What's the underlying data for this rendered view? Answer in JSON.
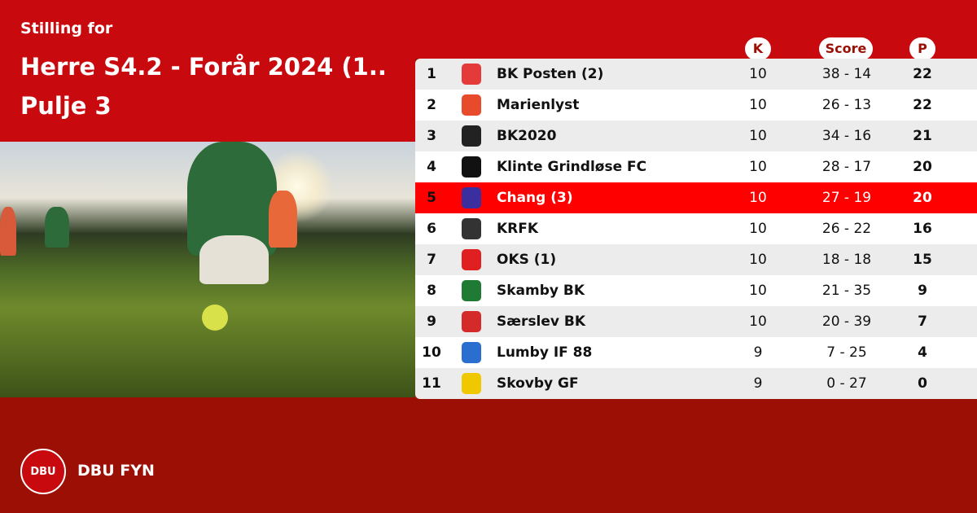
{
  "header": {
    "subtitle": "Stilling for",
    "title": "Herre S4.2 - Forår 2024 (1..",
    "title2": "Pulje 3"
  },
  "columns": {
    "k": "K",
    "score": "Score",
    "p": "P"
  },
  "colors": {
    "header_red": "#c80a0f",
    "footer_red": "#9c0f05",
    "highlight": "#ff0000"
  },
  "rows": [
    {
      "rank": "1",
      "team": "BK Posten (2)",
      "k": "10",
      "score": "38 - 14",
      "p": "22",
      "logo_color": "#e53a3a"
    },
    {
      "rank": "2",
      "team": "Marienlyst",
      "k": "10",
      "score": "26 - 13",
      "p": "22",
      "logo_color": "#e84a2c"
    },
    {
      "rank": "3",
      "team": "BK2020",
      "k": "10",
      "score": "34 - 16",
      "p": "21",
      "logo_color": "#222222"
    },
    {
      "rank": "4",
      "team": "Klinte Grindløse FC",
      "k": "10",
      "score": "28 - 17",
      "p": "20",
      "logo_color": "#111111"
    },
    {
      "rank": "5",
      "team": "Chang  (3)",
      "k": "10",
      "score": "27 - 19",
      "p": "20",
      "logo_color": "#3b2fa0",
      "highlight": true
    },
    {
      "rank": "6",
      "team": "KRFK",
      "k": "10",
      "score": "26 - 22",
      "p": "16",
      "logo_color": "#333333"
    },
    {
      "rank": "7",
      "team": "OKS (1)",
      "k": "10",
      "score": "18 - 18",
      "p": "15",
      "logo_color": "#e02020"
    },
    {
      "rank": "8",
      "team": "Skamby BK",
      "k": "10",
      "score": "21 - 35",
      "p": "9",
      "logo_color": "#1f7a33"
    },
    {
      "rank": "9",
      "team": "Særslev BK",
      "k": "10",
      "score": "20 - 39",
      "p": "7",
      "logo_color": "#d42a2a"
    },
    {
      "rank": "10",
      "team": "Lumby IF 88",
      "k": "9",
      "score": "7 - 25",
      "p": "4",
      "logo_color": "#2a6fd0"
    },
    {
      "rank": "11",
      "team": "Skovby GF",
      "k": "9",
      "score": "0 - 27",
      "p": "0",
      "logo_color": "#f0c800"
    }
  ],
  "footer": {
    "logo_text": "DBU",
    "brand": "DBU FYN"
  }
}
